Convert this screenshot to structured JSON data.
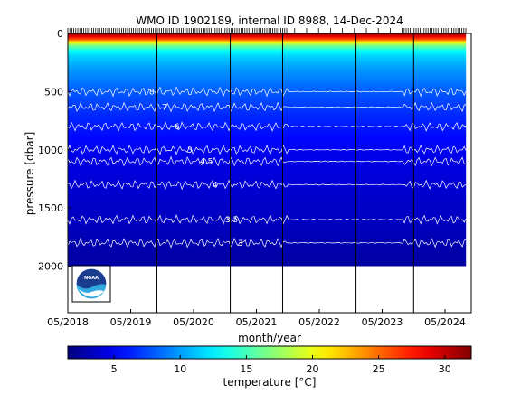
{
  "chart_data": {
    "type": "heatmap",
    "title": "WMO ID 1902189, internal ID 8988, 14-Dec-2024",
    "xlabel": "month/year",
    "ylabel": "pressure [dbar]",
    "x_ticks": [
      "05/2018",
      "05/2019",
      "05/2020",
      "05/2021",
      "05/2022",
      "05/2023",
      "05/2024"
    ],
    "y_ticks": [
      0,
      500,
      1000,
      1500,
      2000
    ],
    "y_range_dbar": [
      0,
      2400
    ],
    "y_reversed": true,
    "x_range": [
      "2018-05",
      "2024-10"
    ],
    "colorbar": {
      "label": "temperature [°C]",
      "ticks": [
        5,
        10,
        15,
        20,
        25,
        30
      ],
      "range": [
        1.5,
        32
      ],
      "colormap": "jet"
    },
    "data_extent": {
      "start": "2018-05",
      "end": "2024-09",
      "max_pressure_dbar": 2000
    },
    "section_separators": [
      "2019-10",
      "2020-12",
      "2021-10",
      "2022-12",
      "2023-11"
    ],
    "contour_labels": [
      "8",
      "7",
      "6",
      "5",
      "4.5",
      "4",
      "3.5",
      "3"
    ],
    "temperature_profile": [
      {
        "pressure": 0,
        "temperature": 31
      },
      {
        "pressure": 25,
        "temperature": 29
      },
      {
        "pressure": 50,
        "temperature": 26
      },
      {
        "pressure": 75,
        "temperature": 21
      },
      {
        "pressure": 100,
        "temperature": 17
      },
      {
        "pressure": 150,
        "temperature": 13
      },
      {
        "pressure": 200,
        "temperature": 11.5
      },
      {
        "pressure": 300,
        "temperature": 10
      },
      {
        "pressure": 500,
        "temperature": 8
      },
      {
        "pressure": 700,
        "temperature": 6.5
      },
      {
        "pressure": 900,
        "temperature": 5.5
      },
      {
        "pressure": 1100,
        "temperature": 4.5
      },
      {
        "pressure": 1300,
        "temperature": 4
      },
      {
        "pressure": 1600,
        "temperature": 3.5
      },
      {
        "pressure": 2000,
        "temperature": 2.5
      }
    ],
    "grid": false
  },
  "logo": {
    "name": "noaa-logo-icon",
    "text": "NOAA"
  },
  "colors": {
    "frame": "#000000",
    "contour": "#ffffff",
    "profile_tick": "#000000"
  }
}
